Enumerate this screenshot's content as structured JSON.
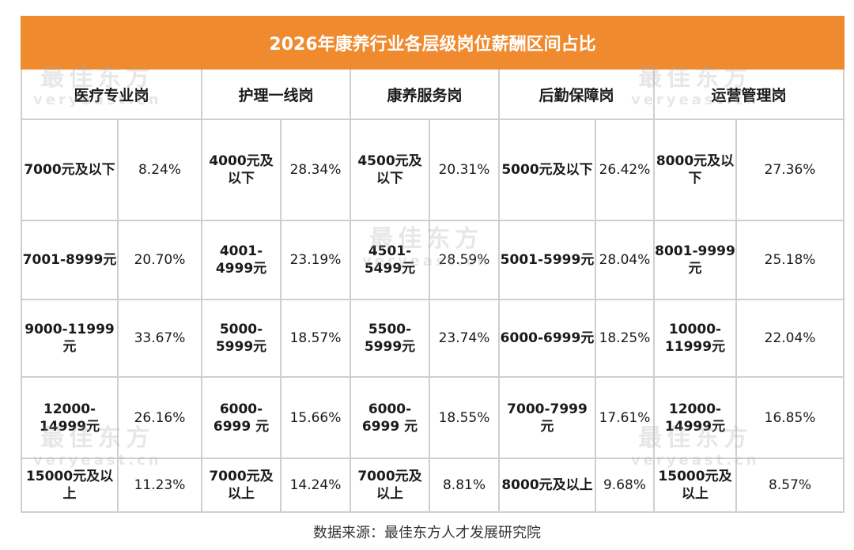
{
  "title": "2026年康养行业各层级岗位薪酬区间占比",
  "headers": [
    "医疗专业岗",
    "护理一线岗",
    "康养服务岗",
    "后勤保障岗",
    "运营管理岗"
  ],
  "rows": [
    {
      "cells": [
        {
          "range": "7000元及以下",
          "pct": "8.24%"
        },
        {
          "range": "4000元及以下",
          "pct": "28.34%"
        },
        {
          "range": "4500元及以下",
          "pct": "20.31%"
        },
        {
          "range": "5000元及以下",
          "pct": "26.42%"
        },
        {
          "range": "8000元及以下",
          "pct": "27.36%"
        }
      ]
    },
    {
      "cells": [
        {
          "range": "7001-8999元",
          "pct": "20.70%"
        },
        {
          "range": "4001-4999元",
          "pct": "23.19%"
        },
        {
          "range": "4501-5499元",
          "pct": "28.59%"
        },
        {
          "range": "5001-5999元",
          "pct": "28.04%"
        },
        {
          "range": "8001-9999元",
          "pct": "25.18%"
        }
      ]
    },
    {
      "cells": [
        {
          "range": "9000-11999元",
          "pct": "33.67%"
        },
        {
          "range": "5000-5999元",
          "pct": "18.57%"
        },
        {
          "range": "5500-5999元",
          "pct": "23.74%"
        },
        {
          "range": "6000-6999元",
          "pct": "18.25%"
        },
        {
          "range": "10000-11999元",
          "pct": "22.04%"
        }
      ]
    },
    {
      "cells": [
        {
          "range": "12000-14999元",
          "pct": "26.16%"
        },
        {
          "range": "6000-6999 元",
          "pct": "15.66%"
        },
        {
          "range": "6000-6999 元",
          "pct": "18.55%"
        },
        {
          "range": "7000-7999 元",
          "pct": "17.61%"
        },
        {
          "range": "12000-14999元",
          "pct": "16.85%"
        }
      ]
    },
    {
      "cells": [
        {
          "range": "15000元及以上",
          "pct": "11.23%"
        },
        {
          "range": "7000元及以上",
          "pct": "14.24%"
        },
        {
          "range": "7000元及以上",
          "pct": "8.81%"
        },
        {
          "range": "8000元及以上",
          "pct": "9.68%"
        },
        {
          "range": "15000元及以上",
          "pct": "8.57%"
        }
      ]
    }
  ],
  "watermark": {
    "cn": "最佳东方",
    "en": "veryeast.cn"
  },
  "source": "数据来源：最佳东方人才发展研究院",
  "colors": {
    "title_bg": "#f08a2e",
    "grid": "#cfcfcf"
  }
}
